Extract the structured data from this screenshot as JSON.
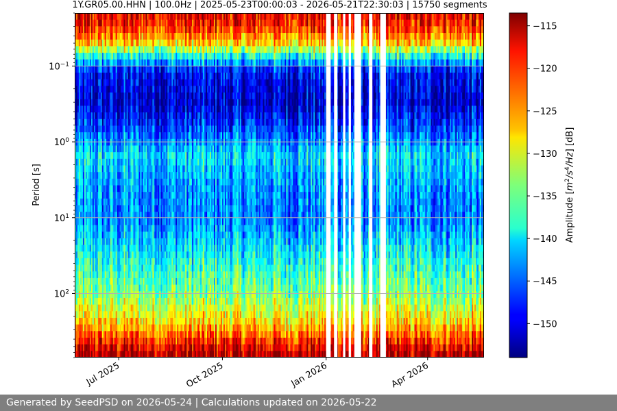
{
  "chart_data": {
    "type": "heatmap",
    "title": "1Y.GR05.00.HHN | 100.0Hz | 2025-05-23T00:00:03 - 2026-05-21T22:30:03 | 15750 segments",
    "xlabel": "",
    "ylabel": "Period [s]",
    "x_range": [
      "2025-05-23",
      "2026-05-21"
    ],
    "x_ticks": [
      {
        "date": "2025-07-01",
        "label": "Jul 2025"
      },
      {
        "date": "2025-10-01",
        "label": "Oct 2025"
      },
      {
        "date": "2026-01-01",
        "label": "Jan 2026"
      },
      {
        "date": "2026-04-01",
        "label": "Apr 2026"
      }
    ],
    "y_scale": "log",
    "y_inverted": true,
    "y_range": [
      0.02,
      700
    ],
    "y_ticks": [
      {
        "value": 0.1,
        "base": "10",
        "exp": "−1"
      },
      {
        "value": 1,
        "base": "10",
        "exp": "0"
      },
      {
        "value": 10,
        "base": "10",
        "exp": "1"
      },
      {
        "value": 100,
        "base": "10",
        "exp": "2"
      }
    ],
    "grid": true,
    "colormap": "jet",
    "colorbar": {
      "label_pre": "Amplitude [",
      "label_m": "m",
      "label_sup1": "2",
      "label_mid": "/s",
      "label_sup2": "4",
      "label_post": "/Hz",
      "label_end": "] [dB]",
      "range": [
        -154,
        -113.5
      ],
      "ticks": [
        -115,
        -120,
        -125,
        -130,
        -135,
        -140,
        -145,
        -150
      ]
    },
    "amplitude_profile": [
      {
        "period": 0.02,
        "db": -118
      },
      {
        "period": 0.03,
        "db": -120
      },
      {
        "period": 0.05,
        "db": -127
      },
      {
        "period": 0.08,
        "db": -140
      },
      {
        "period": 0.12,
        "db": -149
      },
      {
        "period": 0.3,
        "db": -151
      },
      {
        "period": 0.7,
        "db": -146
      },
      {
        "period": 1.5,
        "db": -140
      },
      {
        "period": 4,
        "db": -143
      },
      {
        "period": 10,
        "db": -144
      },
      {
        "period": 30,
        "db": -139
      },
      {
        "period": 100,
        "db": -134
      },
      {
        "period": 250,
        "db": -127
      },
      {
        "period": 500,
        "db": -118
      },
      {
        "period": 700,
        "db": -115
      }
    ],
    "data_gaps": [
      [
        "2026-01-01",
        "2026-01-05"
      ],
      [
        "2026-01-08",
        "2026-01-11"
      ],
      [
        "2026-01-16",
        "2026-01-18"
      ],
      [
        "2026-01-21",
        "2026-01-23"
      ],
      [
        "2026-01-26",
        "2026-02-01"
      ],
      [
        "2026-02-08",
        "2026-02-11"
      ],
      [
        "2026-02-18",
        "2026-02-23"
      ]
    ]
  },
  "footer": {
    "text": "Generated by SeedPSD on 2026-05-24 | Calculations updated on 2026-05-22"
  },
  "colors": {
    "footer_bg": "#7f7f7f",
    "footer_text": "#ffffff",
    "grid": "#b0b0b0"
  }
}
